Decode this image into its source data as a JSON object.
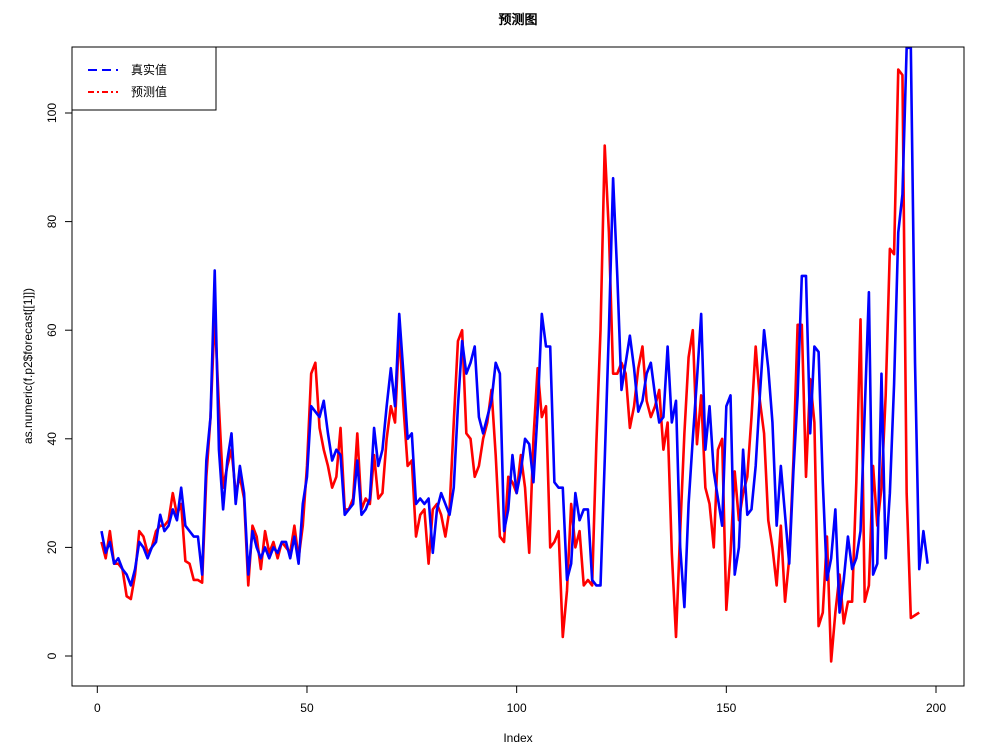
{
  "chart_data": {
    "type": "line",
    "title": "预测图",
    "xlabel": "Index",
    "ylabel": "as.numeric(f.p2$forecast[[1]])",
    "xlim": [
      1,
      200
    ],
    "ylim": [
      -5,
      112
    ],
    "x_ticks": [
      0,
      50,
      100,
      150,
      200
    ],
    "y_ticks": [
      0,
      20,
      40,
      60,
      80,
      100
    ],
    "grid": false,
    "legend_position": "top-left",
    "series": [
      {
        "name": "真实值",
        "color": "#0000ff",
        "style": "dashed",
        "values": [
          23,
          19,
          21,
          17,
          18,
          16,
          15,
          13,
          16,
          21,
          20,
          18,
          20,
          21,
          26,
          23,
          24,
          27,
          25,
          31,
          24,
          23,
          22,
          22,
          15,
          36,
          44,
          71,
          38,
          27,
          36,
          41,
          28,
          35,
          30,
          15,
          23,
          20,
          18,
          20,
          18,
          20,
          19,
          21,
          21,
          18,
          22,
          17,
          28,
          33,
          46,
          45,
          44,
          47,
          41,
          36,
          38,
          37,
          26,
          27,
          28,
          36,
          26,
          27,
          29,
          42,
          35,
          38,
          46,
          53,
          46,
          63,
          52,
          40,
          41,
          28,
          29,
          28,
          29,
          19,
          27,
          30,
          28,
          26,
          31,
          46,
          58,
          52,
          54,
          57,
          44,
          41,
          44,
          47,
          54,
          52,
          23,
          27,
          37,
          30,
          34,
          40,
          39,
          32,
          45,
          63,
          57,
          57,
          32,
          31,
          31,
          14,
          17,
          30,
          25,
          27,
          27,
          14,
          13,
          13,
          36,
          60,
          88,
          70,
          49,
          54,
          59,
          53,
          45,
          47,
          52,
          54,
          48,
          43,
          44,
          57,
          43,
          47,
          20,
          9,
          28,
          40,
          51,
          63,
          38,
          46,
          34,
          29,
          24,
          46,
          48,
          15,
          20,
          38,
          26,
          27,
          35,
          48,
          60,
          53,
          43,
          24,
          35,
          26,
          17,
          34,
          48,
          70,
          70,
          41,
          57,
          56,
          32,
          14,
          18,
          27,
          8,
          14,
          22,
          16,
          18,
          23,
          45,
          67,
          15,
          17,
          52,
          18,
          30,
          50,
          78,
          85,
          112,
          112,
          54,
          16,
          23,
          17
        ]
      },
      {
        "name": "预测值",
        "color": "#ff0000",
        "style": "dotdash",
        "values": [
          21,
          18,
          23,
          17,
          17,
          16,
          11,
          10.5,
          15,
          23,
          22,
          19,
          20,
          23,
          24,
          24,
          25,
          30,
          26,
          28,
          17.5,
          17,
          14,
          14,
          13.5,
          33,
          44,
          63,
          46,
          31,
          35,
          38,
          30,
          33,
          29,
          13,
          24,
          22,
          16,
          23,
          19,
          21,
          18,
          21,
          20,
          19,
          24,
          18,
          24,
          35,
          52,
          54,
          42,
          38,
          35,
          31,
          33,
          42,
          27,
          27,
          29,
          41,
          27,
          29,
          28,
          37,
          29,
          30,
          40,
          46,
          43,
          60,
          46,
          35,
          36,
          22,
          26,
          27,
          17,
          27,
          28,
          26,
          22,
          27,
          43,
          58,
          60,
          41,
          40,
          33,
          35,
          40,
          43,
          49,
          37,
          22,
          21,
          33,
          32,
          30,
          37,
          31,
          19,
          40,
          53,
          44,
          46,
          20,
          21,
          23,
          3.5,
          12,
          28,
          20,
          23,
          13,
          14,
          13,
          39,
          60,
          94,
          78,
          52,
          52,
          54,
          52,
          42,
          46,
          53,
          57,
          47,
          44,
          46,
          49,
          38,
          43,
          19,
          3.5,
          23,
          41,
          55,
          60,
          39,
          48,
          31,
          28,
          20,
          38,
          40,
          8.5,
          19,
          34,
          25,
          30,
          33,
          44,
          57,
          47,
          41,
          25,
          20,
          13,
          24,
          10,
          18,
          36,
          61,
          61,
          33,
          51,
          43,
          5.5,
          8,
          22,
          -1,
          8,
          15,
          6,
          10,
          10,
          32,
          62,
          10,
          13,
          35,
          24,
          31,
          48,
          75,
          74,
          108,
          107,
          30,
          7,
          7.5,
          8
        ]
      }
    ]
  }
}
